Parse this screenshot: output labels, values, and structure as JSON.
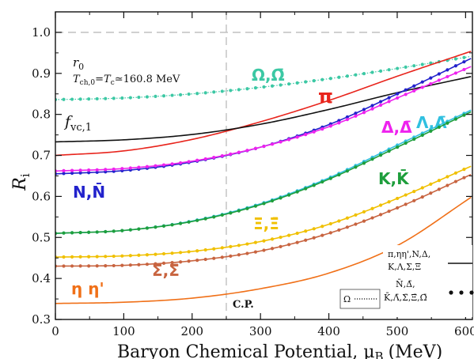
{
  "chart_data": {
    "type": "line",
    "xlabel": "Baryon Chemical Potential, μ",
    "xlabel_sub": "B",
    "xlabel_unit": "(MeV)",
    "ylabel": "R",
    "ylabel_sub": "i",
    "xlim": [
      0,
      610
    ],
    "ylim": [
      0.3,
      1.05
    ],
    "x_ticks": [
      0,
      100,
      200,
      300,
      400,
      500,
      600
    ],
    "x_tick_labels": [
      "0",
      "100",
      "200",
      "300",
      "400",
      "500",
      "600"
    ],
    "y_ticks": [
      0.3,
      0.4,
      0.5,
      0.6,
      0.7,
      0.8,
      0.9,
      1.0
    ],
    "y_tick_labels": [
      "0.3",
      "0.4",
      "0.5",
      "0.6",
      "0.7",
      "0.8",
      "0.9",
      "1.0"
    ],
    "reference_lines": [
      {
        "orientation": "horizontal",
        "value": 1.0,
        "style": "dashed",
        "color": "#bbbbbb"
      },
      {
        "orientation": "vertical",
        "value": 250,
        "style": "dashed",
        "color": "#bbbbbb",
        "label": "C.P."
      }
    ],
    "annotations": {
      "line1": "r",
      "line1_sub": "0",
      "line2_a": "T",
      "line2_a_sub": "ch,0",
      "line2_b": "=T",
      "line2_b_sub": "c",
      "line2_c": "≃160.8 MeV",
      "fvc": "f",
      "fvc_sub": "vc,1"
    },
    "series": [
      {
        "label": "Ω,Ω̄",
        "color": "#3cc8a4",
        "style": "dotted",
        "markers": true,
        "x": [
          0,
          100,
          200,
          300,
          400,
          500,
          610
        ],
        "y": [
          0.836,
          0.84,
          0.85,
          0.866,
          0.887,
          0.912,
          0.942
        ]
      },
      {
        "label": "π",
        "color": "#e8241c",
        "style": "solid",
        "markers": false,
        "x": [
          0,
          100,
          200,
          300,
          400,
          500,
          610
        ],
        "y": [
          0.7,
          0.711,
          0.739,
          0.782,
          0.834,
          0.893,
          0.955
        ]
      },
      {
        "label": "",
        "color": "#111111",
        "style": "solid",
        "markers": false,
        "x": [
          0,
          100,
          200,
          300,
          400,
          500,
          610
        ],
        "y": [
          0.733,
          0.738,
          0.751,
          0.776,
          0.812,
          0.853,
          0.893
        ]
      },
      {
        "label": "N,N̄",
        "color": "#2222cc",
        "style": "solid",
        "markers": true,
        "x": [
          0,
          100,
          200,
          300,
          400,
          500,
          610
        ],
        "y": [
          0.655,
          0.663,
          0.684,
          0.72,
          0.775,
          0.85,
          0.938
        ]
      },
      {
        "label": "Δ,Δ̄",
        "color": "#ee22ee",
        "style": "solid",
        "markers": true,
        "x": [
          0,
          100,
          200,
          300,
          400,
          500,
          610
        ],
        "y": [
          0.662,
          0.668,
          0.686,
          0.72,
          0.77,
          0.84,
          0.918
        ]
      },
      {
        "label": "Λ,Λ̄",
        "color": "#30c0e0",
        "style": "solid",
        "markers": true,
        "x": [
          0,
          100,
          200,
          300,
          400,
          500,
          610
        ],
        "y": [
          0.51,
          0.517,
          0.54,
          0.582,
          0.645,
          0.725,
          0.812
        ]
      },
      {
        "label": "K,K̄",
        "color": "#1e9e3c",
        "style": "solid",
        "markers": true,
        "x": [
          0,
          100,
          200,
          300,
          400,
          500,
          610
        ],
        "y": [
          0.51,
          0.517,
          0.539,
          0.58,
          0.642,
          0.72,
          0.808
        ]
      },
      {
        "label": "Ξ,Ξ̄",
        "color": "#f0c000",
        "style": "solid",
        "markers": true,
        "x": [
          0,
          100,
          200,
          300,
          400,
          500,
          610
        ],
        "y": [
          0.452,
          0.455,
          0.466,
          0.49,
          0.532,
          0.595,
          0.675
        ]
      },
      {
        "label": "Σ,Σ̄",
        "color": "#c86440",
        "style": "solid",
        "markers": true,
        "x": [
          0,
          100,
          200,
          300,
          400,
          500,
          610
        ],
        "y": [
          0.43,
          0.432,
          0.443,
          0.467,
          0.51,
          0.572,
          0.655
        ]
      },
      {
        "label": "η η'",
        "color": "#f07018",
        "style": "solid",
        "markers": false,
        "x": [
          0,
          100,
          200,
          300,
          400,
          500,
          610
        ],
        "y": [
          0.339,
          0.342,
          0.352,
          0.375,
          0.413,
          0.48,
          0.6
        ]
      }
    ],
    "legend": {
      "position": "bottom-right",
      "entries": [
        {
          "label_lines": [
            "π,ηη',N,Δ,",
            "K,Λ,Σ,Ξ"
          ],
          "style": "solid"
        },
        {
          "label_lines": [
            "N̄,Δ̄,",
            "K̄,Λ̄,Σ̄,Ξ̄,Ω̄"
          ],
          "style": "dots"
        }
      ],
      "omega_entry": {
        "label": "Ω",
        "style": "dotted"
      }
    }
  }
}
